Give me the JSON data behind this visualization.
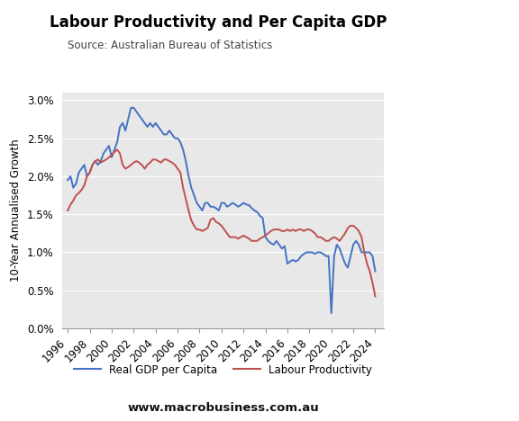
{
  "title": "Labour Productivity and Per Capita GDP",
  "source": "Source: Australian Bureau of Statistics",
  "ylabel": "10-Year Annualised Growth",
  "website": "www.macrobusiness.com.au",
  "background_color": "#e8e8e8",
  "ylim": [
    0.0,
    0.031
  ],
  "yticks": [
    0.0,
    0.005,
    0.01,
    0.015,
    0.02,
    0.025,
    0.03
  ],
  "ytick_labels": [
    "0.0%",
    "0.5%",
    "1.0%",
    "1.5%",
    "2.0%",
    "2.5%",
    "3.0%"
  ],
  "blue_color": "#4472C4",
  "red_color": "#C0504D",
  "blue_label": "Real GDP per Capita",
  "red_label": "Labour Productivity",
  "logo_color": "#CC1111",
  "xticks": [
    1996,
    1998,
    2000,
    2002,
    2004,
    2006,
    2008,
    2010,
    2012,
    2014,
    2016,
    2018,
    2020,
    2022,
    2024
  ],
  "xlim": [
    1995.5,
    2024.8
  ],
  "gdp_x": [
    1996.0,
    1996.25,
    1996.5,
    1996.75,
    1997.0,
    1997.25,
    1997.5,
    1997.75,
    1998.0,
    1998.25,
    1998.5,
    1998.75,
    1999.0,
    1999.25,
    1999.5,
    1999.75,
    2000.0,
    2000.25,
    2000.5,
    2000.75,
    2001.0,
    2001.25,
    2001.5,
    2001.75,
    2002.0,
    2002.25,
    2002.5,
    2002.75,
    2003.0,
    2003.25,
    2003.5,
    2003.75,
    2004.0,
    2004.25,
    2004.5,
    2004.75,
    2005.0,
    2005.25,
    2005.5,
    2005.75,
    2006.0,
    2006.25,
    2006.5,
    2006.75,
    2007.0,
    2007.25,
    2007.5,
    2007.75,
    2008.0,
    2008.25,
    2008.5,
    2008.75,
    2009.0,
    2009.25,
    2009.5,
    2009.75,
    2010.0,
    2010.25,
    2010.5,
    2010.75,
    2011.0,
    2011.25,
    2011.5,
    2011.75,
    2012.0,
    2012.25,
    2012.5,
    2012.75,
    2013.0,
    2013.25,
    2013.5,
    2013.75,
    2014.0,
    2014.25,
    2014.5,
    2014.75,
    2015.0,
    2015.25,
    2015.5,
    2015.75,
    2016.0,
    2016.25,
    2016.5,
    2016.75,
    2017.0,
    2017.25,
    2017.5,
    2017.75,
    2018.0,
    2018.25,
    2018.5,
    2018.75,
    2019.0,
    2019.25,
    2019.5,
    2019.75,
    2020.0,
    2020.25,
    2020.5,
    2020.75,
    2021.0,
    2021.25,
    2021.5,
    2021.75,
    2022.0,
    2022.25,
    2022.5,
    2022.75,
    2023.0,
    2023.25,
    2023.5,
    2023.75,
    2024.0
  ],
  "gdp_y": [
    0.0195,
    0.02,
    0.0185,
    0.019,
    0.0205,
    0.021,
    0.0215,
    0.02,
    0.0205,
    0.0215,
    0.022,
    0.0215,
    0.022,
    0.023,
    0.0235,
    0.024,
    0.0225,
    0.0235,
    0.0245,
    0.0265,
    0.027,
    0.026,
    0.0275,
    0.029,
    0.029,
    0.0285,
    0.028,
    0.0275,
    0.027,
    0.0265,
    0.027,
    0.0265,
    0.027,
    0.0265,
    0.026,
    0.0255,
    0.0255,
    0.026,
    0.0255,
    0.025,
    0.025,
    0.0245,
    0.0235,
    0.022,
    0.02,
    0.0185,
    0.0175,
    0.0165,
    0.016,
    0.0155,
    0.0165,
    0.0165,
    0.016,
    0.016,
    0.0158,
    0.0155,
    0.0165,
    0.0165,
    0.016,
    0.0162,
    0.0165,
    0.0163,
    0.016,
    0.0162,
    0.0165,
    0.0163,
    0.0162,
    0.0158,
    0.0155,
    0.0153,
    0.0148,
    0.0145,
    0.012,
    0.0115,
    0.0112,
    0.011,
    0.0115,
    0.011,
    0.0105,
    0.0108,
    0.0085,
    0.0088,
    0.009,
    0.0088,
    0.009,
    0.0095,
    0.0098,
    0.01,
    0.01,
    0.01,
    0.0098,
    0.01,
    0.01,
    0.0098,
    0.0095,
    0.0095,
    0.002,
    0.0095,
    0.011,
    0.0105,
    0.0095,
    0.0085,
    0.008,
    0.0095,
    0.011,
    0.0115,
    0.011,
    0.01,
    0.01,
    0.01,
    0.01,
    0.0095,
    0.0075
  ],
  "prod_x": [
    1996.0,
    1996.25,
    1996.5,
    1996.75,
    1997.0,
    1997.25,
    1997.5,
    1997.75,
    1998.0,
    1998.25,
    1998.5,
    1998.75,
    1999.0,
    1999.25,
    1999.5,
    1999.75,
    2000.0,
    2000.25,
    2000.5,
    2000.75,
    2001.0,
    2001.25,
    2001.5,
    2001.75,
    2002.0,
    2002.25,
    2002.5,
    2002.75,
    2003.0,
    2003.25,
    2003.5,
    2003.75,
    2004.0,
    2004.25,
    2004.5,
    2004.75,
    2005.0,
    2005.25,
    2005.5,
    2005.75,
    2006.0,
    2006.25,
    2006.5,
    2006.75,
    2007.0,
    2007.25,
    2007.5,
    2007.75,
    2008.0,
    2008.25,
    2008.5,
    2008.75,
    2009.0,
    2009.25,
    2009.5,
    2009.75,
    2010.0,
    2010.25,
    2010.5,
    2010.75,
    2011.0,
    2011.25,
    2011.5,
    2011.75,
    2012.0,
    2012.25,
    2012.5,
    2012.75,
    2013.0,
    2013.25,
    2013.5,
    2013.75,
    2014.0,
    2014.25,
    2014.5,
    2014.75,
    2015.0,
    2015.25,
    2015.5,
    2015.75,
    2016.0,
    2016.25,
    2016.5,
    2016.75,
    2017.0,
    2017.25,
    2017.5,
    2017.75,
    2018.0,
    2018.25,
    2018.5,
    2018.75,
    2019.0,
    2019.25,
    2019.5,
    2019.75,
    2020.0,
    2020.25,
    2020.5,
    2020.75,
    2021.0,
    2021.25,
    2021.5,
    2021.75,
    2022.0,
    2022.25,
    2022.5,
    2022.75,
    2023.0,
    2023.25,
    2023.5,
    2023.75,
    2024.0
  ],
  "prod_y": [
    0.0155,
    0.0163,
    0.0168,
    0.0175,
    0.0178,
    0.0182,
    0.0188,
    0.02,
    0.0205,
    0.0215,
    0.022,
    0.0222,
    0.0218,
    0.022,
    0.0222,
    0.0225,
    0.0228,
    0.0232,
    0.0235,
    0.023,
    0.0215,
    0.021,
    0.0212,
    0.0215,
    0.0218,
    0.022,
    0.0218,
    0.0215,
    0.021,
    0.0215,
    0.0218,
    0.0222,
    0.0222,
    0.022,
    0.0218,
    0.0222,
    0.0222,
    0.022,
    0.0218,
    0.0215,
    0.021,
    0.0205,
    0.0185,
    0.017,
    0.0155,
    0.0142,
    0.0135,
    0.013,
    0.013,
    0.0128,
    0.013,
    0.0132,
    0.0143,
    0.0145,
    0.014,
    0.0138,
    0.0135,
    0.013,
    0.0125,
    0.012,
    0.012,
    0.012,
    0.0118,
    0.012,
    0.0122,
    0.012,
    0.0118,
    0.0115,
    0.0115,
    0.0115,
    0.0118,
    0.012,
    0.0122,
    0.0125,
    0.0128,
    0.013,
    0.013,
    0.013,
    0.0128,
    0.0128,
    0.013,
    0.0128,
    0.013,
    0.0128,
    0.013,
    0.013,
    0.0128,
    0.013,
    0.013,
    0.0128,
    0.0125,
    0.012,
    0.012,
    0.0118,
    0.0115,
    0.0115,
    0.0118,
    0.012,
    0.0118,
    0.0115,
    0.012,
    0.0125,
    0.0132,
    0.0135,
    0.0135,
    0.0132,
    0.0128,
    0.012,
    0.01,
    0.0085,
    0.0075,
    0.006,
    0.0042
  ]
}
